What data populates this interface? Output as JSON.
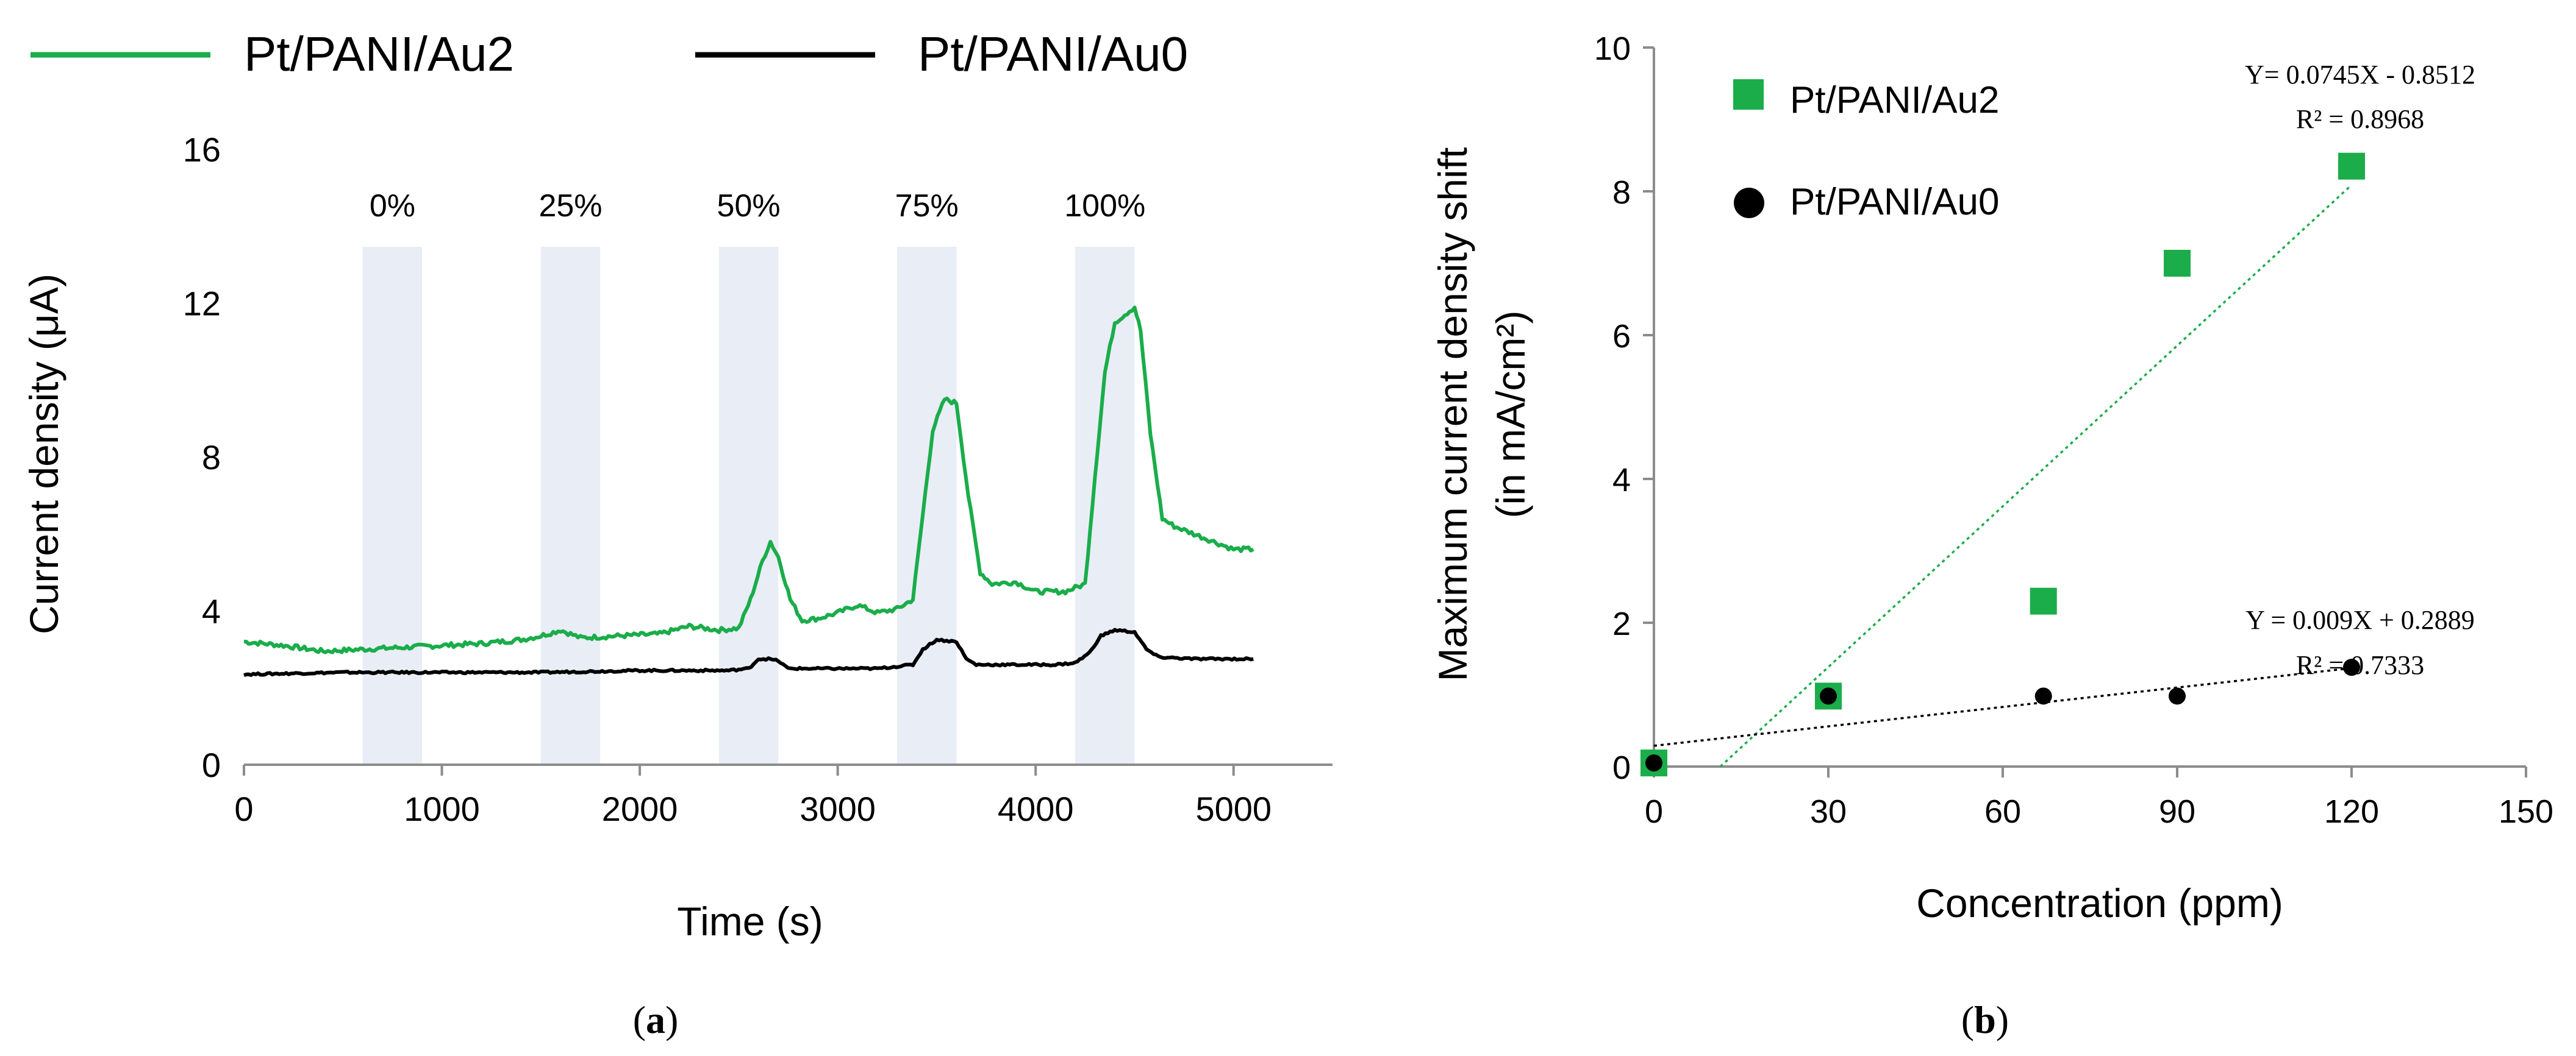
{
  "colors": {
    "green": "#1aad4a",
    "black": "#000000",
    "shade": "#e9edf6",
    "axis": "#8c8c8c"
  },
  "chart_data": [
    {
      "type": "line",
      "panel_label": "(a)",
      "title": "",
      "xlabel": "Time (s)",
      "ylabel": "Current density (μA)",
      "xlim": [
        0,
        5500
      ],
      "ylim": [
        0,
        16
      ],
      "xticks": [
        0,
        1000,
        2000,
        3000,
        4000,
        5000
      ],
      "yticks": [
        0,
        4,
        8,
        12,
        16
      ],
      "legend": [
        "Pt/PANI/Au2",
        "Pt/PANI/Au0"
      ],
      "legend_position": "top",
      "shaded_intervals": [
        {
          "label": "0%",
          "start": 600,
          "end": 900
        },
        {
          "label": "25%",
          "start": 1500,
          "end": 1800
        },
        {
          "label": "50%",
          "start": 2400,
          "end": 2700
        },
        {
          "label": "75%",
          "start": 3300,
          "end": 3600
        },
        {
          "label": "100%",
          "start": 4200,
          "end": 4500
        }
      ],
      "series": [
        {
          "name": "Pt/PANI/Au2",
          "color": "green",
          "points": [
            [
              0,
              3.2
            ],
            [
              200,
              3.1
            ],
            [
              400,
              2.95
            ],
            [
              600,
              3.0
            ],
            [
              800,
              3.05
            ],
            [
              1000,
              3.1
            ],
            [
              1200,
              3.15
            ],
            [
              1400,
              3.25
            ],
            [
              1500,
              3.35
            ],
            [
              1600,
              3.5
            ],
            [
              1700,
              3.3
            ],
            [
              1900,
              3.35
            ],
            [
              2100,
              3.4
            ],
            [
              2250,
              3.6
            ],
            [
              2400,
              3.5
            ],
            [
              2500,
              3.55
            ],
            [
              2560,
              4.3
            ],
            [
              2620,
              5.3
            ],
            [
              2660,
              5.8
            ],
            [
              2700,
              5.4
            ],
            [
              2760,
              4.3
            ],
            [
              2820,
              3.75
            ],
            [
              2900,
              3.8
            ],
            [
              3000,
              3.95
            ],
            [
              3100,
              4.15
            ],
            [
              3200,
              3.95
            ],
            [
              3300,
              4.05
            ],
            [
              3380,
              4.3
            ],
            [
              3430,
              6.5
            ],
            [
              3480,
              8.7
            ],
            [
              3540,
              9.5
            ],
            [
              3600,
              9.4
            ],
            [
              3660,
              7.0
            ],
            [
              3720,
              5.0
            ],
            [
              3780,
              4.7
            ],
            [
              3900,
              4.75
            ],
            [
              4000,
              4.5
            ],
            [
              4150,
              4.5
            ],
            [
              4250,
              4.7
            ],
            [
              4300,
              7.5
            ],
            [
              4350,
              10.2
            ],
            [
              4400,
              11.5
            ],
            [
              4450,
              11.7
            ],
            [
              4500,
              11.9
            ],
            [
              4530,
              11.3
            ],
            [
              4580,
              8.6
            ],
            [
              4640,
              6.4
            ],
            [
              4700,
              6.2
            ],
            [
              4800,
              6.0
            ],
            [
              4900,
              5.8
            ],
            [
              5000,
              5.6
            ],
            [
              5100,
              5.6
            ]
          ]
        },
        {
          "name": "Pt/PANI/Au0",
          "color": "black",
          "points": [
            [
              0,
              2.35
            ],
            [
              500,
              2.4
            ],
            [
              1000,
              2.4
            ],
            [
              1500,
              2.4
            ],
            [
              2000,
              2.45
            ],
            [
              2450,
              2.45
            ],
            [
              2550,
              2.5
            ],
            [
              2600,
              2.75
            ],
            [
              2650,
              2.75
            ],
            [
              2700,
              2.7
            ],
            [
              2750,
              2.5
            ],
            [
              2900,
              2.5
            ],
            [
              3200,
              2.5
            ],
            [
              3380,
              2.6
            ],
            [
              3430,
              3.0
            ],
            [
              3500,
              3.25
            ],
            [
              3600,
              3.2
            ],
            [
              3650,
              2.75
            ],
            [
              3700,
              2.6
            ],
            [
              4100,
              2.6
            ],
            [
              4200,
              2.65
            ],
            [
              4270,
              2.9
            ],
            [
              4330,
              3.35
            ],
            [
              4400,
              3.5
            ],
            [
              4500,
              3.45
            ],
            [
              4560,
              3.0
            ],
            [
              4620,
              2.8
            ],
            [
              4800,
              2.75
            ],
            [
              5100,
              2.75
            ]
          ]
        }
      ]
    },
    {
      "type": "scatter",
      "panel_label": "(b)",
      "title": "",
      "xlabel": "Concentration (ppm)",
      "ylabel_line1": "Maximum current density shift",
      "ylabel_line2": "(in mA/cm²)",
      "xlim": [
        0,
        150
      ],
      "ylim": [
        0,
        10
      ],
      "xticks": [
        0,
        30,
        60,
        90,
        120,
        150
      ],
      "yticks": [
        0,
        2,
        4,
        6,
        8,
        10
      ],
      "legend": [
        "Pt/PANI/Au2",
        "Pt/PANI/Au0"
      ],
      "legend_position": "top-left",
      "series": [
        {
          "name": "Pt/PANI/Au2",
          "marker": "square",
          "color": "green",
          "x": [
            0,
            30,
            67,
            90,
            120
          ],
          "y": [
            0.05,
            0.98,
            2.3,
            7.0,
            8.35
          ],
          "trendline": {
            "slope": 0.0745,
            "intercept": -0.8512,
            "equation": "Y= 0.0745X - 0.8512",
            "r2": "R² = 0.8968"
          }
        },
        {
          "name": "Pt/PANI/Au0",
          "marker": "circle",
          "color": "black",
          "x": [
            0,
            30,
            67,
            90,
            120
          ],
          "y": [
            0.05,
            0.98,
            0.98,
            0.98,
            1.38
          ],
          "trendline": {
            "slope": 0.009,
            "intercept": 0.2889,
            "equation": "Y = 0.009X + 0.2889",
            "r2": "R² = 0.7333"
          }
        }
      ]
    }
  ]
}
